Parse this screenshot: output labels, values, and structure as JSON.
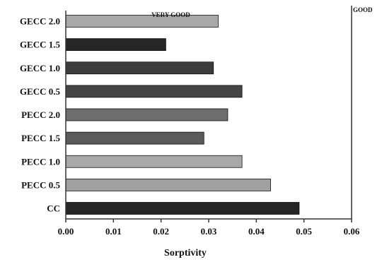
{
  "chart_data": {
    "type": "bar",
    "orientation": "horizontal",
    "categories": [
      "GECC 2.0",
      "GECC 1.5",
      "GECC 1.0",
      "GECC 0.5",
      "PECC 2.0",
      "PECC 1.5",
      "PECC 1.0",
      "PECC 0.5",
      "CC"
    ],
    "values": [
      0.032,
      0.021,
      0.031,
      0.037,
      0.034,
      0.029,
      0.037,
      0.043,
      0.049
    ],
    "bar_colors": [
      "#a8a8a8",
      "#262626",
      "#3c3c3c",
      "#444444",
      "#6e6e6e",
      "#5a5a5a",
      "#a8a8a8",
      "#a0a0a0",
      "#262626"
    ],
    "xlabel": "Sorptivity",
    "ylabel": "",
    "xlim": [
      0.0,
      0.06
    ],
    "xticks": [
      "0.00",
      "0.01",
      "0.02",
      "0.03",
      "0.04",
      "0.05",
      "0.06"
    ],
    "xtick_values": [
      0.0,
      0.01,
      0.02,
      0.03,
      0.04,
      0.05,
      0.06
    ],
    "grid": false,
    "legend": "none",
    "annotations": [
      {
        "text": "VERY GOOD",
        "x": 0.018
      },
      {
        "text": "GOOD",
        "x": 0.06
      }
    ],
    "reference_line": 0.06
  }
}
